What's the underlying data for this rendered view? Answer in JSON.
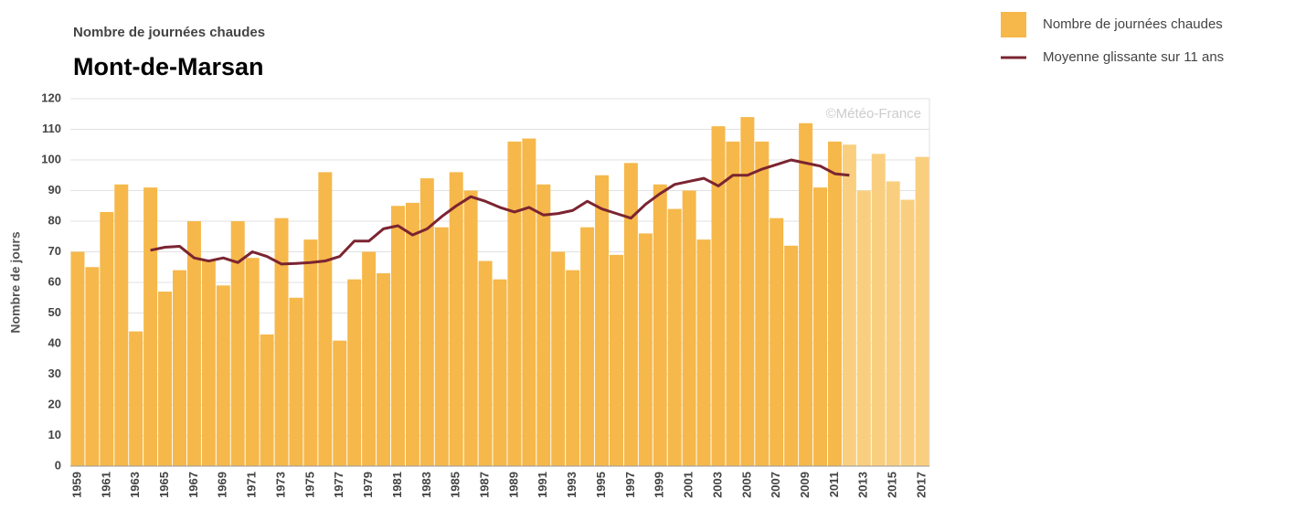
{
  "chart_data": {
    "type": "bar",
    "subtitle": "Nombre de journées chaudes",
    "title": "Mont-de-Marsan",
    "ylabel": "Nombre de jours",
    "watermark": "©Météo-France",
    "categories": [
      "1959",
      null,
      "1961",
      null,
      "1963",
      null,
      "1965",
      null,
      "1967",
      null,
      "1969",
      null,
      "1971",
      null,
      "1973",
      null,
      "1975",
      null,
      "1977",
      null,
      "1979",
      null,
      "1981",
      null,
      "1983",
      null,
      "1985",
      null,
      "1987",
      null,
      "1989",
      null,
      "1991",
      null,
      "1993",
      null,
      "1995",
      null,
      "1997",
      null,
      "1999",
      null,
      "2001",
      null,
      "2003",
      null,
      "2005",
      null,
      "2007",
      null,
      "2009",
      null,
      "2011",
      null,
      "2013",
      null,
      "2015",
      null,
      "2017"
    ],
    "series": [
      {
        "name": "Nombre de journées chaudes",
        "type": "bar",
        "color": "#f6b84a",
        "values": [
          70,
          65,
          83,
          92,
          44,
          91,
          57,
          64,
          80,
          67,
          59,
          80,
          68,
          43,
          81,
          55,
          74,
          96,
          41,
          61,
          70,
          63,
          85,
          86,
          94,
          78,
          96,
          90,
          67,
          61,
          106,
          107,
          92,
          70,
          64,
          78,
          95,
          69,
          99,
          76,
          92,
          84,
          90,
          74,
          111,
          106,
          114,
          106,
          81,
          72,
          112,
          91,
          106,
          105,
          90,
          102,
          93,
          87,
          101
        ],
        "colors": [
          "#f6b84a",
          "#f6b84a",
          "#f6b84a",
          "#f6b84a",
          "#f6b84a",
          "#f6b84a",
          "#f6b84a",
          "#f6b84a",
          "#f6b84a",
          "#f6b84a",
          "#f6b84a",
          "#f6b84a",
          "#f6b84a",
          "#f6b84a",
          "#f6b84a",
          "#f6b84a",
          "#f6b84a",
          "#f6b84a",
          "#f6b84a",
          "#f6b84a",
          "#f6b84a",
          "#f6b84a",
          "#f6b84a",
          "#f6b84a",
          "#f6b84a",
          "#f6b84a",
          "#f6b84a",
          "#f6b84a",
          "#f6b84a",
          "#f6b84a",
          "#f6b84a",
          "#f6b84a",
          "#f6b84a",
          "#f6b84a",
          "#f6b84a",
          "#f6b84a",
          "#f6b84a",
          "#f6b84a",
          "#f6b84a",
          "#f6b84a",
          "#f6b84a",
          "#f6b84a",
          "#f6b84a",
          "#f6b84a",
          "#f6b84a",
          "#f6b84a",
          "#f6b84a",
          "#f6b84a",
          "#f6b84a",
          "#f6b84a",
          "#f6b84a",
          "#f6b84a",
          "#f6b84a",
          "#f9cf7f",
          "#f9cf7f",
          "#f9cf7f",
          "#f9cf7f",
          "#f9cf7f",
          "#f9cf7f"
        ]
      },
      {
        "name": "Moyenne glissante sur 11 ans",
        "type": "line",
        "color": "#7b2431",
        "values": [
          null,
          null,
          null,
          null,
          null,
          70.5,
          71.5,
          71.8,
          68,
          67,
          68,
          66.5,
          70,
          68.5,
          66,
          66.2,
          66.5,
          67,
          68.5,
          73.5,
          73.5,
          77.5,
          78.5,
          75.5,
          77.5,
          81.5,
          85,
          88,
          86.5,
          84.5,
          83,
          84.5,
          82,
          82.5,
          83.5,
          86.5,
          84,
          82.5,
          81,
          85.5,
          89,
          92,
          93,
          94,
          91.5,
          95,
          95,
          97,
          98.5,
          100,
          99,
          98,
          95.5,
          95,
          null,
          null,
          null,
          null,
          null
        ]
      }
    ],
    "ylim": [
      0,
      120
    ],
    "yticks": [
      0,
      10,
      20,
      30,
      40,
      50,
      60,
      70,
      80,
      90,
      100,
      110,
      120
    ],
    "grid": true,
    "legend": "top-right"
  }
}
